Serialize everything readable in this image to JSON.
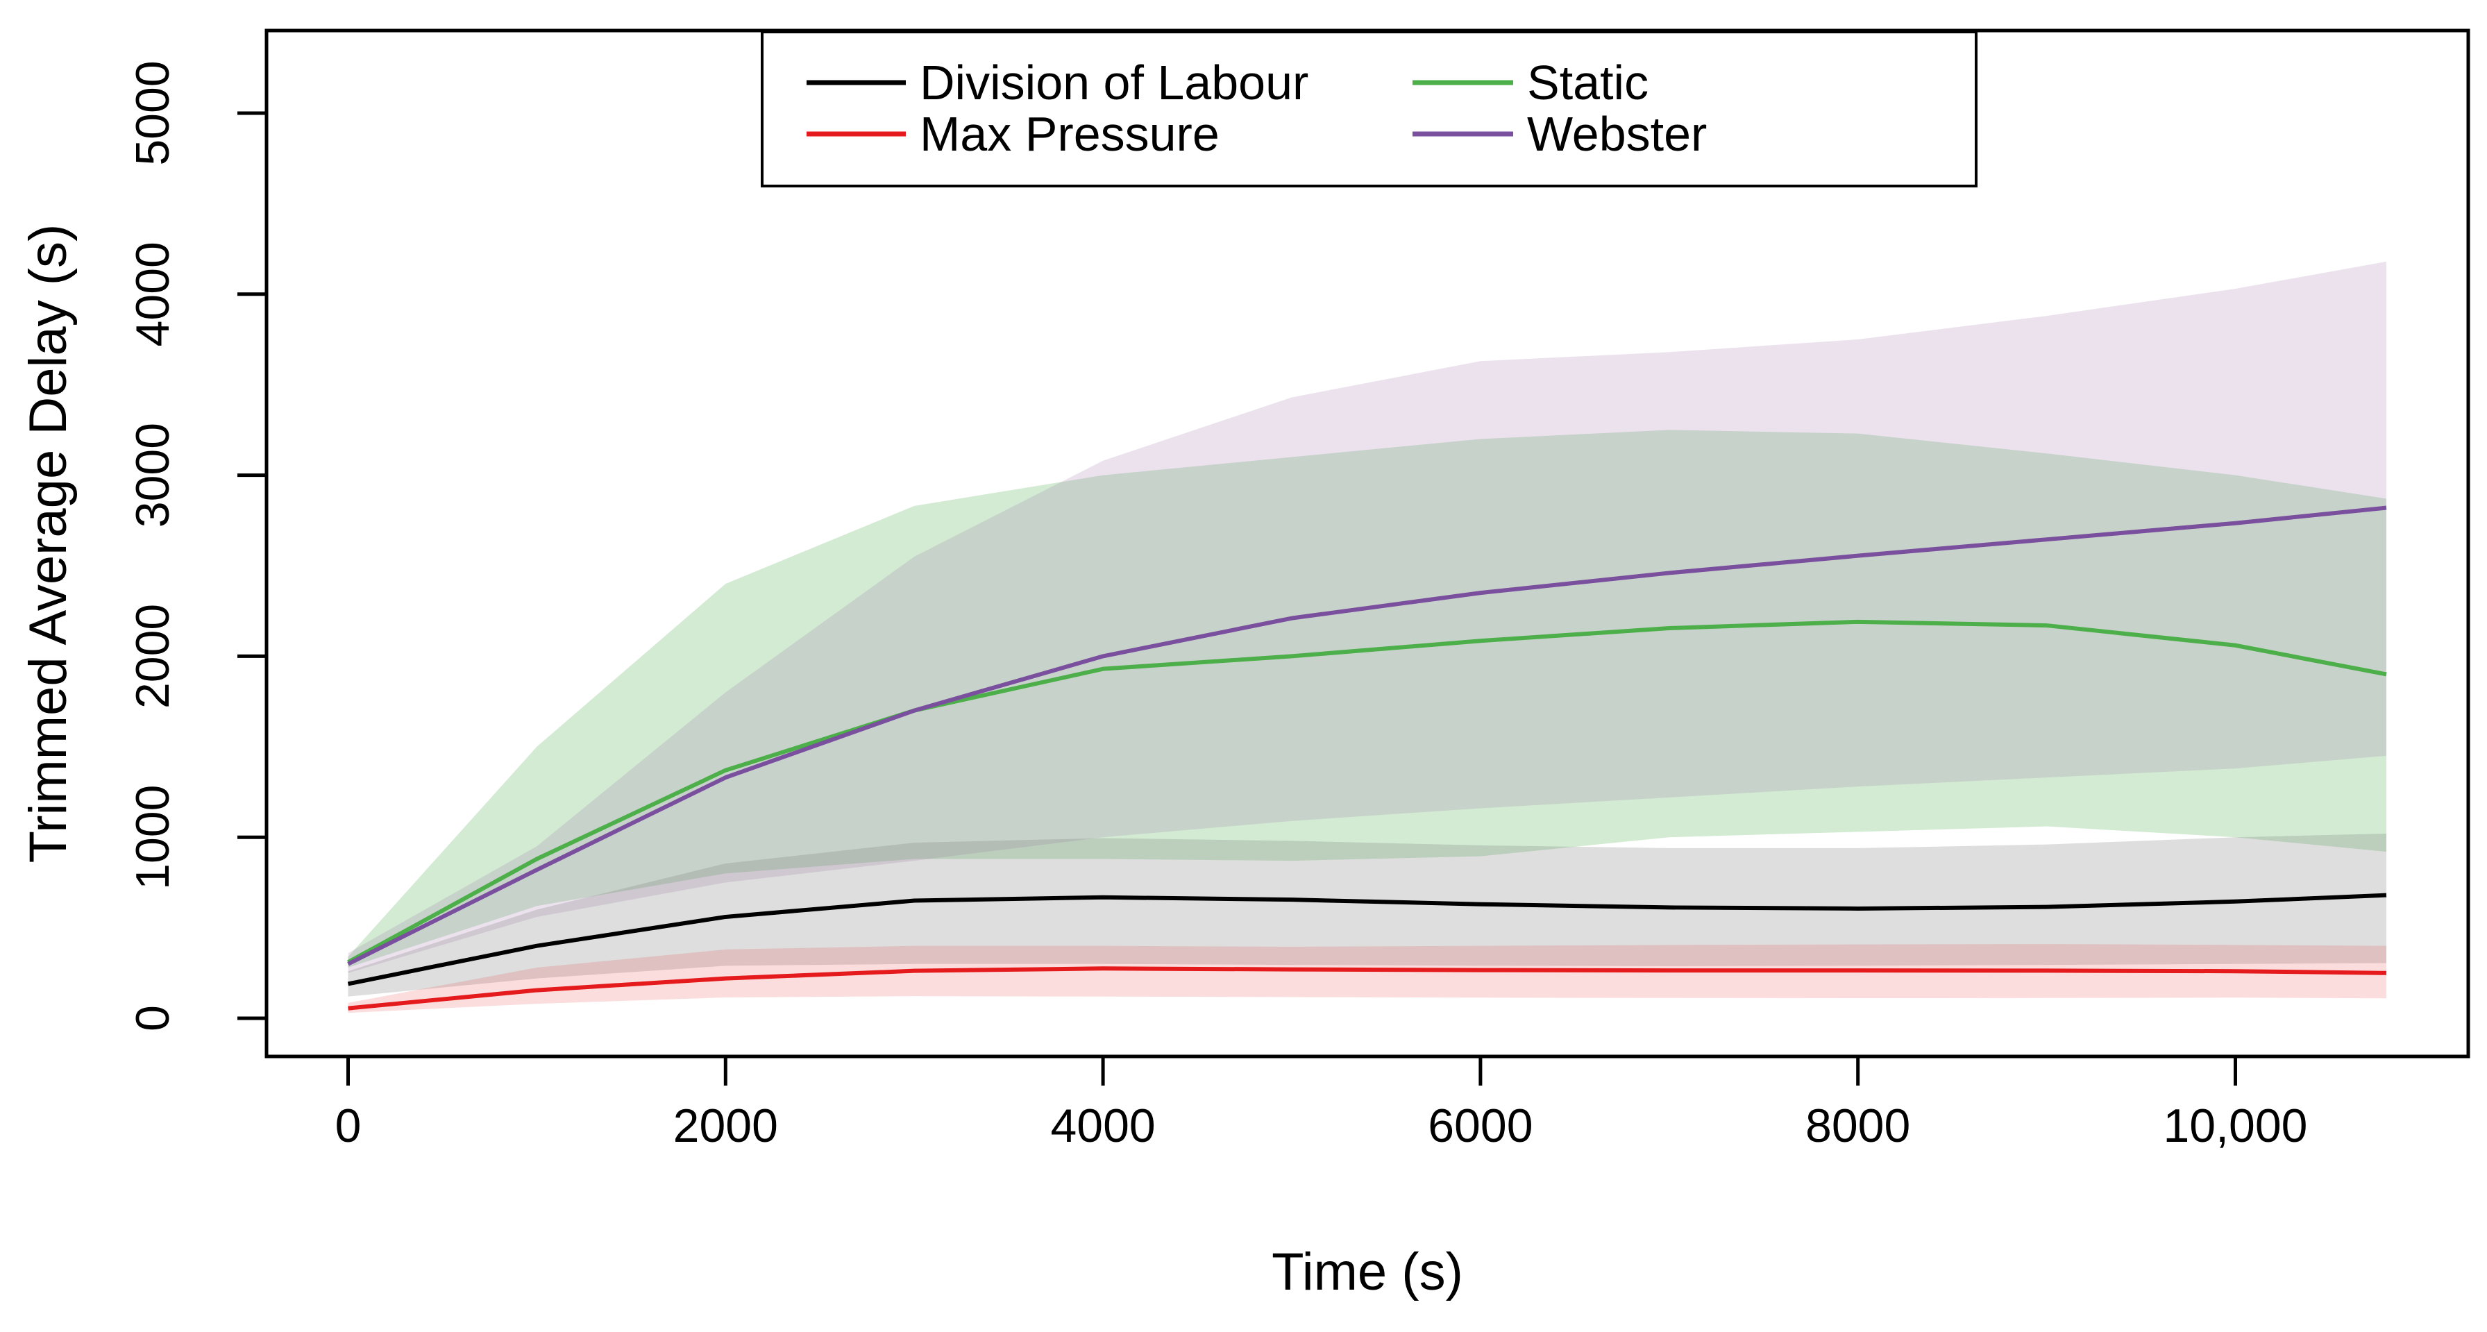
{
  "chart_data": {
    "type": "line",
    "title": "",
    "xlabel": "Time (s)",
    "ylabel": "Trimmed Average Delay (s)",
    "x_range": [
      0,
      10800
    ],
    "y_range": [
      0,
      5000
    ],
    "grid": false,
    "legend_position": "top-center",
    "x_ticks": {
      "values": [
        0,
        2000,
        4000,
        6000,
        8000,
        10000
      ],
      "labels": [
        "0",
        "2000",
        "4000",
        "6000",
        "8000",
        "10,000"
      ]
    },
    "y_ticks": {
      "values": [
        0,
        1000,
        2000,
        3000,
        4000,
        5000
      ],
      "labels": [
        "0",
        "1000",
        "2000",
        "3000",
        "4000",
        "5000"
      ]
    },
    "x": [
      0,
      1000,
      2000,
      3000,
      4000,
      5000,
      6000,
      7000,
      8000,
      9000,
      10000,
      10800
    ],
    "series": [
      {
        "name": "Division of Labour",
        "color": "#000000",
        "values": [
          190,
          400,
          560,
          650,
          668,
          655,
          630,
          612,
          606,
          615,
          645,
          680
        ],
        "band_lower": [
          120,
          220,
          290,
          300,
          300,
          295,
          290,
          288,
          290,
          295,
          300,
          305
        ],
        "band_upper": [
          260,
          600,
          855,
          970,
          995,
          980,
          955,
          940,
          940,
          960,
          1000,
          1020
        ],
        "band_color": "#808080",
        "band_opacity": 0.26
      },
      {
        "name": "Max Pressure",
        "color": "#e41a1c",
        "values": [
          55,
          155,
          220,
          262,
          275,
          270,
          266,
          264,
          264,
          263,
          260,
          250
        ],
        "band_lower": [
          30,
          80,
          115,
          122,
          120,
          117,
          114,
          112,
          111,
          112,
          114,
          110
        ],
        "band_upper": [
          85,
          280,
          380,
          400,
          400,
          395,
          400,
          405,
          408,
          410,
          405,
          400
        ],
        "band_color": "#e41a1c",
        "band_opacity": 0.15
      },
      {
        "name": "Static",
        "color": "#4daf4a",
        "values": [
          310,
          880,
          1370,
          1700,
          1930,
          2000,
          2085,
          2155,
          2190,
          2170,
          2060,
          1900
        ],
        "band_lower": [
          280,
          620,
          800,
          880,
          880,
          870,
          895,
          1000,
          1030,
          1060,
          1000,
          920
        ],
        "band_upper": [
          340,
          1500,
          2400,
          2830,
          3000,
          3100,
          3200,
          3250,
          3230,
          3120,
          3000,
          2870
        ],
        "band_color": "#4daf4a",
        "band_opacity": 0.25
      },
      {
        "name": "Webster",
        "color": "#7a4f9e",
        "values": [
          300,
          820,
          1330,
          1700,
          2000,
          2210,
          2350,
          2460,
          2555,
          2645,
          2735,
          2820
        ],
        "band_lower": [
          250,
          560,
          750,
          870,
          1000,
          1090,
          1160,
          1220,
          1280,
          1330,
          1380,
          1450
        ],
        "band_upper": [
          360,
          950,
          1800,
          2550,
          3080,
          3430,
          3630,
          3680,
          3750,
          3880,
          4030,
          4180
        ],
        "band_color": "#9970ab",
        "band_opacity": 0.2
      }
    ],
    "band_draw_order": [
      "Static",
      "Webster",
      "Division of Labour",
      "Max Pressure"
    ],
    "line_draw_order": [
      "Division of Labour",
      "Max Pressure",
      "Static",
      "Webster"
    ],
    "legend": {
      "columns": [
        [
          "Division of Labour",
          "Max Pressure"
        ],
        [
          "Static",
          "Webster"
        ]
      ]
    }
  }
}
